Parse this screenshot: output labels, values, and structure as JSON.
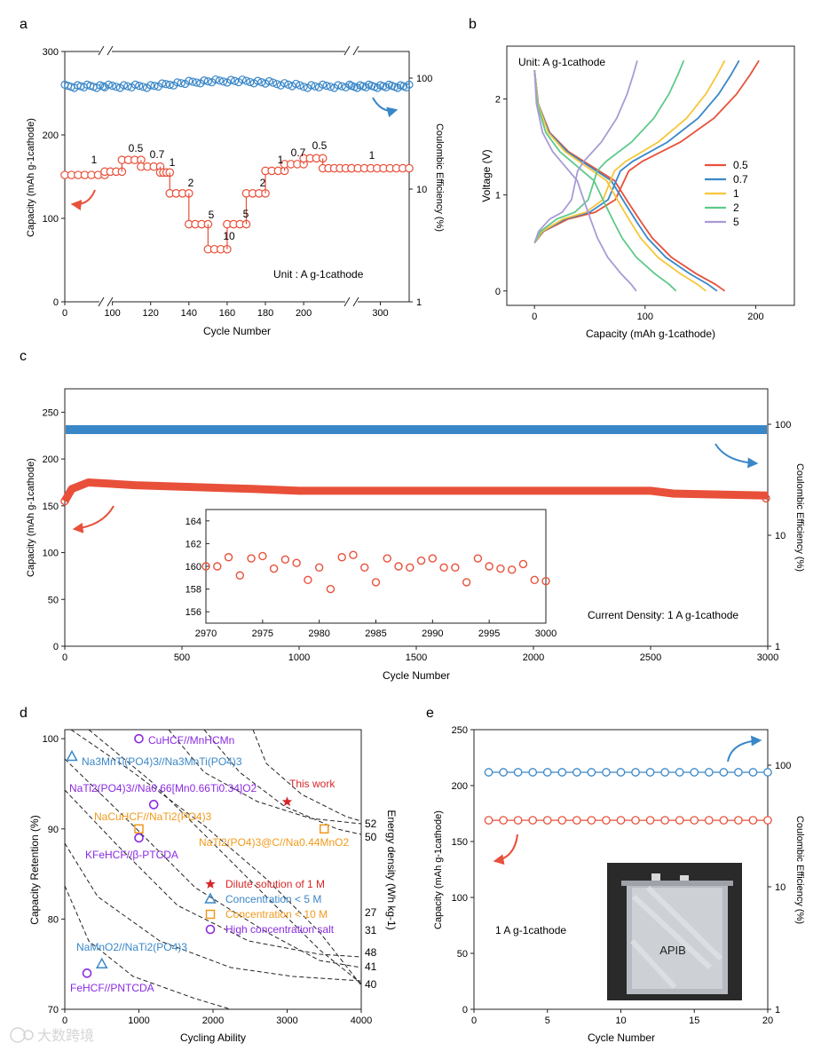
{
  "colors": {
    "red": "#e8503a",
    "blue": "#3a87c8",
    "yellow": "#f7c63a",
    "green": "#5ec98a",
    "purple": "#a99ad6",
    "orange": "#f09a1b",
    "violet": "#8a2be2",
    "grey": "#666666"
  },
  "chart_data": [
    {
      "panel": "a",
      "type": "scatter",
      "panel_label": "a",
      "xlabel": "Cycle Number",
      "ylabel": "Capacity (mAh g-1cathode)",
      "ylabel_right": "Coulombic Efficiency (%)",
      "unit_note": "Unit : A g-1cathode",
      "x_ticks": [
        "0",
        "100",
        "120",
        "140",
        "160",
        "180",
        "200",
        "300"
      ],
      "y_ticks": [
        "0",
        "100",
        "200",
        "300"
      ],
      "y_right_ticks": [
        "1",
        "10",
        "100"
      ],
      "ylim": [
        0,
        300
      ],
      "y_right_log": true,
      "y_right_lim": [
        1,
        100
      ],
      "x_segments": [
        {
          "from": 0,
          "to": 25
        },
        {
          "from": 96,
          "to": 225
        },
        {
          "from": 270,
          "to": 330
        }
      ],
      "series": [
        {
          "role": "capacity",
          "values_by_segment": [
            {
              "start_cycle": 0,
              "end_cycle": 25,
              "value": 152
            },
            {
              "start_cycle": 96,
              "end_cycle": 105,
              "value": 156
            },
            {
              "start_cycle": 105,
              "end_cycle": 115,
              "value": 170
            },
            {
              "start_cycle": 115,
              "end_cycle": 125,
              "value": 162
            },
            {
              "start_cycle": 125,
              "end_cycle": 130,
              "value": 155
            },
            {
              "start_cycle": 130,
              "end_cycle": 140,
              "value": 130
            },
            {
              "start_cycle": 140,
              "end_cycle": 150,
              "value": 93
            },
            {
              "start_cycle": 150,
              "end_cycle": 160,
              "value": 63
            },
            {
              "start_cycle": 160,
              "end_cycle": 170,
              "value": 93
            },
            {
              "start_cycle": 170,
              "end_cycle": 180,
              "value": 130
            },
            {
              "start_cycle": 180,
              "end_cycle": 190,
              "value": 157
            },
            {
              "start_cycle": 190,
              "end_cycle": 200,
              "value": 165
            },
            {
              "start_cycle": 200,
              "end_cycle": 210,
              "value": 172
            },
            {
              "start_cycle": 210,
              "end_cycle": 225,
              "value": 160
            },
            {
              "start_cycle": 270,
              "end_cycle": 330,
              "value": 160
            }
          ]
        },
        {
          "role": "coulombic_efficiency",
          "value": 98
        }
      ],
      "rate_labels": [
        "1",
        "0.5",
        "0.7",
        "1",
        "2",
        "5",
        "10",
        "5",
        "2",
        "1",
        "0.7",
        "0.5",
        "1"
      ]
    },
    {
      "panel": "b",
      "type": "line",
      "panel_label": "b",
      "xlabel": "Capacity (mAh g-1cathode)",
      "ylabel": "Voltage (V)",
      "unit_note": "Unit: A g-1cathode",
      "x_ticks": [
        "0",
        "100",
        "200"
      ],
      "y_ticks": [
        "0",
        "1",
        "2"
      ],
      "xlim": [
        -25,
        235
      ],
      "ylim": [
        -0.15,
        2.55
      ],
      "legend": [
        "0.5",
        "0.7",
        "1",
        "2",
        "5"
      ],
      "series": [
        {
          "name": "0.5",
          "charge_end": 203,
          "discharge_end": 172
        },
        {
          "name": "0.7",
          "charge_end": 185,
          "discharge_end": 165
        },
        {
          "name": "1",
          "charge_end": 172,
          "discharge_end": 155
        },
        {
          "name": "2",
          "charge_end": 135,
          "discharge_end": 128
        },
        {
          "name": "5",
          "charge_end": 93,
          "discharge_end": 92
        }
      ]
    },
    {
      "panel": "c",
      "type": "scatter",
      "panel_label": "c",
      "xlabel": "Cycle Number",
      "ylabel": "Capacity (mAh g-1cathode)",
      "ylabel_right": "Coulombic Efficiency (%)",
      "x_ticks": [
        "0",
        "500",
        "1000",
        "1500",
        "2000",
        "2500",
        "3000"
      ],
      "y_ticks": [
        "0",
        "50",
        "100",
        "150",
        "200",
        "250"
      ],
      "y_right_ticks": [
        "1",
        "10",
        "100"
      ],
      "xlim": [
        0,
        3000
      ],
      "ylim": [
        0,
        275
      ],
      "current_note": "Current Density: 1 A g-1cathode",
      "capacity_trend": [
        [
          0,
          155
        ],
        [
          30,
          168
        ],
        [
          100,
          175
        ],
        [
          300,
          172
        ],
        [
          800,
          168
        ],
        [
          1000,
          166
        ],
        [
          2000,
          166
        ],
        [
          2500,
          166
        ],
        [
          2600,
          163
        ],
        [
          3000,
          161
        ]
      ],
      "ce_value": 98,
      "inset": {
        "x_ticks": [
          "2970",
          "2975",
          "2980",
          "2985",
          "2990",
          "2995",
          "3000"
        ],
        "y_ticks": [
          "156",
          "158",
          "160",
          "162",
          "164"
        ],
        "xlim": [
          2970,
          3000
        ],
        "ylim": [
          155,
          165
        ],
        "x": [
          2970,
          2971,
          2972,
          2973,
          2974,
          2975,
          2976,
          2977,
          2978,
          2979,
          2980,
          2981,
          2982,
          2983,
          2984,
          2985,
          2986,
          2987,
          2988,
          2989,
          2990,
          2991,
          2992,
          2993,
          2994,
          2995,
          2996,
          2997,
          2998,
          2999,
          3000
        ],
        "values": [
          160.0,
          160.0,
          160.8,
          159.2,
          160.7,
          160.9,
          159.8,
          160.6,
          160.3,
          158.8,
          159.9,
          158.0,
          160.8,
          161.0,
          159.9,
          158.6,
          160.7,
          160.0,
          159.9,
          160.5,
          160.7,
          159.9,
          159.9,
          158.6,
          160.7,
          160.0,
          159.8,
          159.7,
          160.2,
          158.8,
          158.7
        ]
      }
    },
    {
      "panel": "d",
      "type": "scatter",
      "panel_label": "d",
      "xlabel": "Cycling Ability",
      "ylabel": "Capacity Retention (%)",
      "ylabel_right": "Energy density (Wh kg-1)",
      "x_ticks": [
        "0",
        "1000",
        "2000",
        "3000",
        "4000"
      ],
      "y_ticks": [
        "70",
        "80",
        "90",
        "100"
      ],
      "xlim": [
        0,
        4000
      ],
      "ylim": [
        70,
        101
      ],
      "energy_labels": [
        "52",
        "50",
        "27",
        "31",
        "48",
        "41",
        "40"
      ],
      "legend": [
        "Dilute solution of 1 M",
        "Concentration < 5 M",
        "Concentration < 10 M",
        "High concentration salt"
      ],
      "points": [
        {
          "label": "This work",
          "x": 3000,
          "y": 93,
          "group": "Dilute solution of 1 M"
        },
        {
          "label": "CuHCF//MnHCMn",
          "x": 1000,
          "y": 100,
          "group": "High concentration salt"
        },
        {
          "label": "Na3MnTi(PO4)3//Na3MnTi(PO4)3",
          "x": 0,
          "y": 98,
          "group": "Concentration < 5 M"
        },
        {
          "label": "NaTi2(PO4)3//Na0.66[Mn0.66Ti0.34]O2",
          "x": 1200,
          "y": 92.7,
          "group": "High concentration salt"
        },
        {
          "label": "NaCuHCF//NaTi2(PO4)3",
          "x": 1000,
          "y": 90,
          "group": "Concentration < 10 M"
        },
        {
          "label": "KFeHCF//β-PTCDA",
          "x": 1000,
          "y": 89,
          "group": "High concentration salt"
        },
        {
          "label": "NaTi2(PO4)3@C//Na0.44MnO2",
          "x": 3500,
          "y": 90,
          "group": "Concentration < 10 M"
        },
        {
          "label": "NaMnO2//NaTi2(PO4)3",
          "x": 500,
          "y": 75,
          "group": "Concentration < 5 M"
        },
        {
          "label": "FeHCF//PNTCDA",
          "x": 300,
          "y": 74,
          "group": "High concentration salt"
        }
      ]
    },
    {
      "panel": "e",
      "type": "scatter",
      "panel_label": "e",
      "xlabel": "Cycle Number",
      "ylabel": "Capacity (mAh g-1cathode)",
      "ylabel_right": "Coulombic Efficiency (%)",
      "x_ticks": [
        "0",
        "5",
        "10",
        "15",
        "20"
      ],
      "y_ticks": [
        "0",
        "50",
        "100",
        "150",
        "200",
        "250"
      ],
      "y_right_ticks": [
        "1",
        "10",
        "100"
      ],
      "xlim": [
        0,
        20
      ],
      "ylim": [
        0,
        250
      ],
      "current_note": "1 A g-1cathode",
      "photo_label": "APIB",
      "capacity": [
        169,
        169,
        169,
        169,
        169,
        169,
        169,
        169,
        169,
        169,
        169,
        169,
        169,
        169,
        169,
        169,
        169,
        169,
        169,
        169
      ],
      "ce": 98
    }
  ],
  "watermark": "大数跨境"
}
